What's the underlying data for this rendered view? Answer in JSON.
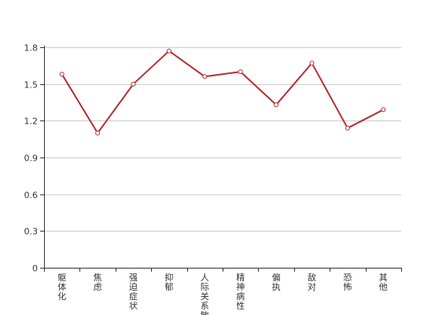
{
  "chart_data": {
    "type": "line",
    "categories": [
      "躯体化",
      "焦虑",
      "强迫症状",
      "抑郁",
      "人际关系敏感",
      "精神病性",
      "偏执",
      "敌对",
      "恐怖",
      "其他"
    ],
    "series": [
      {
        "values": [
          1.58,
          1.1,
          1.5,
          1.77,
          1.56,
          1.6,
          1.33,
          1.67,
          1.14,
          1.29
        ]
      }
    ],
    "ylim": [
      0,
      1.8
    ],
    "yticks": [
      "0",
      "0.3",
      "0.6",
      "0.9",
      "1.2",
      "1.5",
      "1.8"
    ],
    "grid": true,
    "colors": {
      "line": "#b52e31",
      "grid": "#cccccc",
      "axis": "#333333"
    }
  }
}
